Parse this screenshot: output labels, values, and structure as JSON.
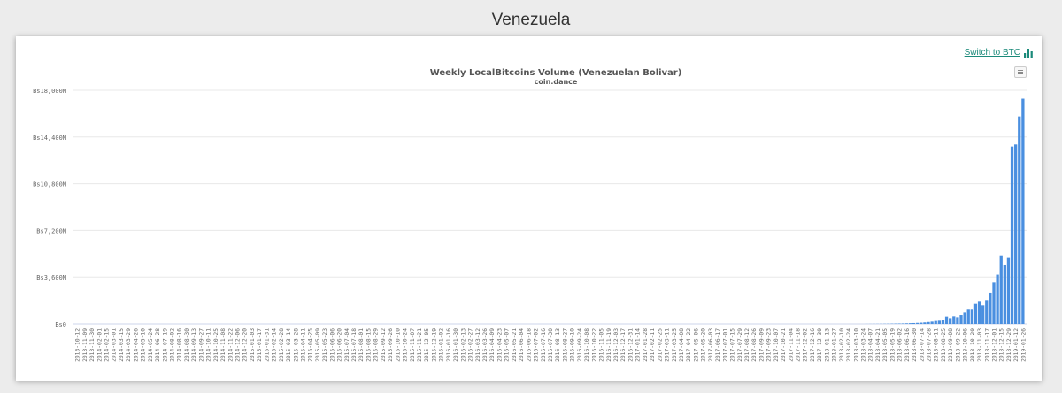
{
  "page": {
    "title": "Venezuela"
  },
  "card": {
    "switch_label": "Switch to BTC",
    "switch_icon": "bar-chart-icon",
    "menu_icon": "hamburger-menu-icon"
  },
  "colors": {
    "bar": "#4a8fe0",
    "link": "#1b8a7a",
    "grid": "#e8e8e8"
  },
  "chart_data": {
    "type": "bar",
    "title": "Weekly LocalBitcoins Volume (Venezuelan Bolivar)",
    "subtitle": "coin.dance",
    "xlabel": "",
    "ylabel": "",
    "ylim": [
      0,
      18000
    ],
    "y_unit": "M Bs",
    "y_ticks": [
      "Bs0",
      "Bs3,600M",
      "Bs7,200M",
      "Bs10,800M",
      "Bs14,400M",
      "Bs18,000M"
    ],
    "grid": true,
    "legend": "none",
    "x_tick_labels": [
      "2013-10-12",
      "2013-11-09",
      "2013-11-30",
      "2014-02-01",
      "2014-02-15",
      "2014-03-01",
      "2014-03-15",
      "2014-03-29",
      "2014-04-26",
      "2014-05-10",
      "2014-05-24",
      "2014-06-28",
      "2014-07-19",
      "2014-08-02",
      "2014-08-16",
      "2014-08-30",
      "2014-09-13",
      "2014-09-27",
      "2014-10-11",
      "2014-10-25",
      "2014-11-08",
      "2014-11-22",
      "2014-12-06",
      "2014-12-20",
      "2015-01-03",
      "2015-01-17",
      "2015-01-31",
      "2015-02-14",
      "2015-02-28",
      "2015-03-14",
      "2015-03-28",
      "2015-04-11",
      "2015-04-25",
      "2015-05-09",
      "2015-05-23",
      "2015-06-06",
      "2015-06-20",
      "2015-07-04",
      "2015-07-18",
      "2015-08-01",
      "2015-08-15",
      "2015-08-29",
      "2015-09-12",
      "2015-09-26",
      "2015-10-10",
      "2015-10-24",
      "2015-11-07",
      "2015-11-21",
      "2015-12-05",
      "2015-12-19",
      "2016-01-02",
      "2016-01-16",
      "2016-01-30",
      "2016-02-13",
      "2016-02-27",
      "2016-03-12",
      "2016-03-26",
      "2016-04-09",
      "2016-04-23",
      "2016-05-07",
      "2016-05-21",
      "2016-06-04",
      "2016-06-18",
      "2016-07-02",
      "2016-07-16",
      "2016-07-30",
      "2016-08-13",
      "2016-08-27",
      "2016-09-10",
      "2016-09-24",
      "2016-10-08",
      "2016-10-22",
      "2016-11-05",
      "2016-11-19",
      "2016-12-03",
      "2016-12-17",
      "2016-12-31",
      "2017-01-14",
      "2017-01-28",
      "2017-02-11",
      "2017-02-25",
      "2017-03-11",
      "2017-03-25",
      "2017-04-08",
      "2017-04-22",
      "2017-05-06",
      "2017-05-20",
      "2017-06-03",
      "2017-06-17",
      "2017-07-01",
      "2017-07-15",
      "2017-07-29",
      "2017-08-12",
      "2017-08-26",
      "2017-09-09",
      "2017-09-23",
      "2017-10-07",
      "2017-10-21",
      "2017-11-04",
      "2017-11-18",
      "2017-12-02",
      "2017-12-16",
      "2017-12-30",
      "2018-01-13",
      "2018-01-27",
      "2018-02-10",
      "2018-02-24",
      "2018-03-10",
      "2018-03-24",
      "2018-04-07",
      "2018-04-21",
      "2018-05-05",
      "2018-05-19",
      "2018-06-02",
      "2018-06-16",
      "2018-06-30",
      "2018-07-14",
      "2018-07-28",
      "2018-08-11",
      "2018-08-25",
      "2018-09-08",
      "2018-09-22",
      "2018-10-06",
      "2018-10-20",
      "2018-11-03",
      "2018-11-17",
      "2018-12-01",
      "2018-12-15",
      "2018-12-29",
      "2019-01-12",
      "2019-01-26"
    ],
    "weeks": [
      "2018-03-31",
      "2018-04-07",
      "2018-04-14",
      "2018-04-21",
      "2018-04-28",
      "2018-05-05",
      "2018-05-12",
      "2018-05-19",
      "2018-05-26",
      "2018-06-02",
      "2018-06-09",
      "2018-06-16",
      "2018-06-23",
      "2018-06-30",
      "2018-07-07",
      "2018-07-14",
      "2018-07-21",
      "2018-07-28",
      "2018-08-04",
      "2018-08-11",
      "2018-08-18",
      "2018-08-25",
      "2018-09-01",
      "2018-09-08",
      "2018-09-15",
      "2018-09-22",
      "2018-09-29",
      "2018-10-06",
      "2018-10-13",
      "2018-10-20",
      "2018-10-27",
      "2018-11-03",
      "2018-11-10",
      "2018-11-17",
      "2018-11-24",
      "2018-12-01",
      "2018-12-08",
      "2018-12-15",
      "2018-12-22",
      "2018-12-29",
      "2019-01-05",
      "2019-01-12",
      "2019-01-19",
      "2019-01-26"
    ],
    "values": [
      5,
      6,
      8,
      10,
      12,
      15,
      20,
      25,
      30,
      35,
      40,
      50,
      60,
      70,
      85,
      100,
      120,
      150,
      180,
      230,
      250,
      300,
      570,
      450,
      590,
      520,
      680,
      860,
      1140,
      1140,
      1590,
      1750,
      1410,
      1820,
      2390,
      3180,
      3780,
      5270,
      4570,
      5140,
      13660,
      13820,
      15980,
      17350
    ]
  }
}
